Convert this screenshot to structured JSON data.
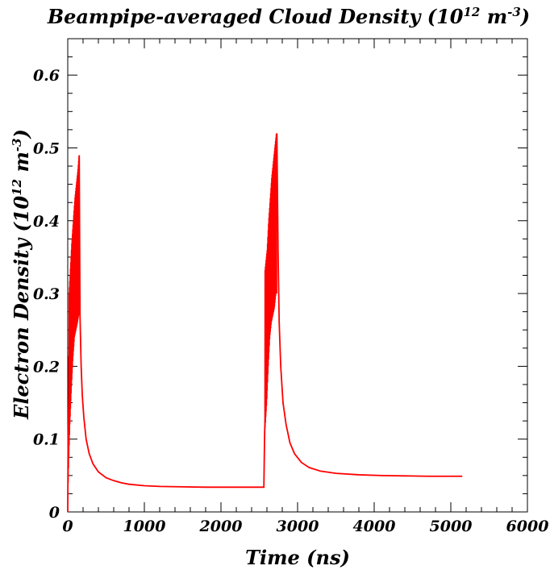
{
  "chart_data": {
    "type": "line",
    "title": {
      "main": "Beampipe-averaged Cloud Density (10",
      "exp1": "12",
      "mid": " m",
      "exp2": "-3",
      "end": ")"
    },
    "xlabel": "Time (ns)",
    "ylabel": {
      "main": "Electron Density (10",
      "exp1": "12",
      "mid": " m",
      "exp2": "-3",
      "end": ")"
    },
    "xlim": [
      0,
      6000
    ],
    "ylim": [
      0,
      0.65
    ],
    "x_ticks": [
      0,
      1000,
      2000,
      3000,
      4000,
      5000,
      6000
    ],
    "x_tick_labels": [
      "0",
      "1000",
      "2000",
      "3000",
      "4000",
      "5000",
      "6000"
    ],
    "y_ticks": [
      0,
      0.1,
      0.2,
      0.3,
      0.4,
      0.5,
      0.6
    ],
    "y_tick_labels": [
      "0",
      "0.1",
      "0.2",
      "0.3",
      "0.4",
      "0.5",
      "0.6"
    ],
    "line_color": "#ff0000",
    "grid": false,
    "series": [
      {
        "x": [
          0,
          5,
          15,
          30,
          50,
          70,
          90,
          110,
          130,
          145,
          150,
          160,
          175,
          190,
          210,
          240,
          280,
          330,
          400,
          500,
          600,
          700,
          800,
          1000,
          1200,
          1500,
          1800,
          2100,
          2400,
          2560,
          2570,
          2600,
          2620,
          2640,
          2660,
          2680,
          2700,
          2710,
          2720,
          2730,
          2745,
          2760,
          2780,
          2810,
          2850,
          2900,
          2960,
          3050,
          3150,
          3300,
          3500,
          3800,
          4100,
          4400,
          4700,
          5000,
          5150
        ],
        "y": [
          0,
          0.1,
          0.16,
          0.22,
          0.27,
          0.31,
          0.35,
          0.39,
          0.43,
          0.46,
          0.49,
          0.27,
          0.2,
          0.16,
          0.13,
          0.1,
          0.08,
          0.066,
          0.055,
          0.047,
          0.043,
          0.04,
          0.038,
          0.036,
          0.035,
          0.0345,
          0.034,
          0.034,
          0.034,
          0.034,
          0.11,
          0.18,
          0.24,
          0.29,
          0.34,
          0.38,
          0.42,
          0.46,
          0.49,
          0.52,
          0.36,
          0.26,
          0.2,
          0.15,
          0.12,
          0.095,
          0.08,
          0.068,
          0.061,
          0.056,
          0.053,
          0.051,
          0.05,
          0.0495,
          0.049,
          0.049,
          0.049
        ]
      }
    ],
    "oscillation_bands": [
      {
        "x": [
          0,
          15,
          30,
          50,
          70,
          90,
          110,
          130,
          145,
          150
        ],
        "low": [
          0,
          0.07,
          0.12,
          0.17,
          0.21,
          0.24,
          0.25,
          0.26,
          0.27,
          0.27
        ],
        "high": [
          0,
          0.3,
          0.33,
          0.37,
          0.4,
          0.43,
          0.45,
          0.47,
          0.49,
          0.49
        ]
      },
      {
        "x": [
          2570,
          2600,
          2620,
          2640,
          2660,
          2680,
          2700,
          2720,
          2730
        ],
        "low": [
          0.1,
          0.15,
          0.2,
          0.24,
          0.26,
          0.27,
          0.28,
          0.3,
          0.3
        ],
        "high": [
          0.33,
          0.36,
          0.4,
          0.43,
          0.46,
          0.48,
          0.5,
          0.52,
          0.52
        ]
      }
    ]
  }
}
